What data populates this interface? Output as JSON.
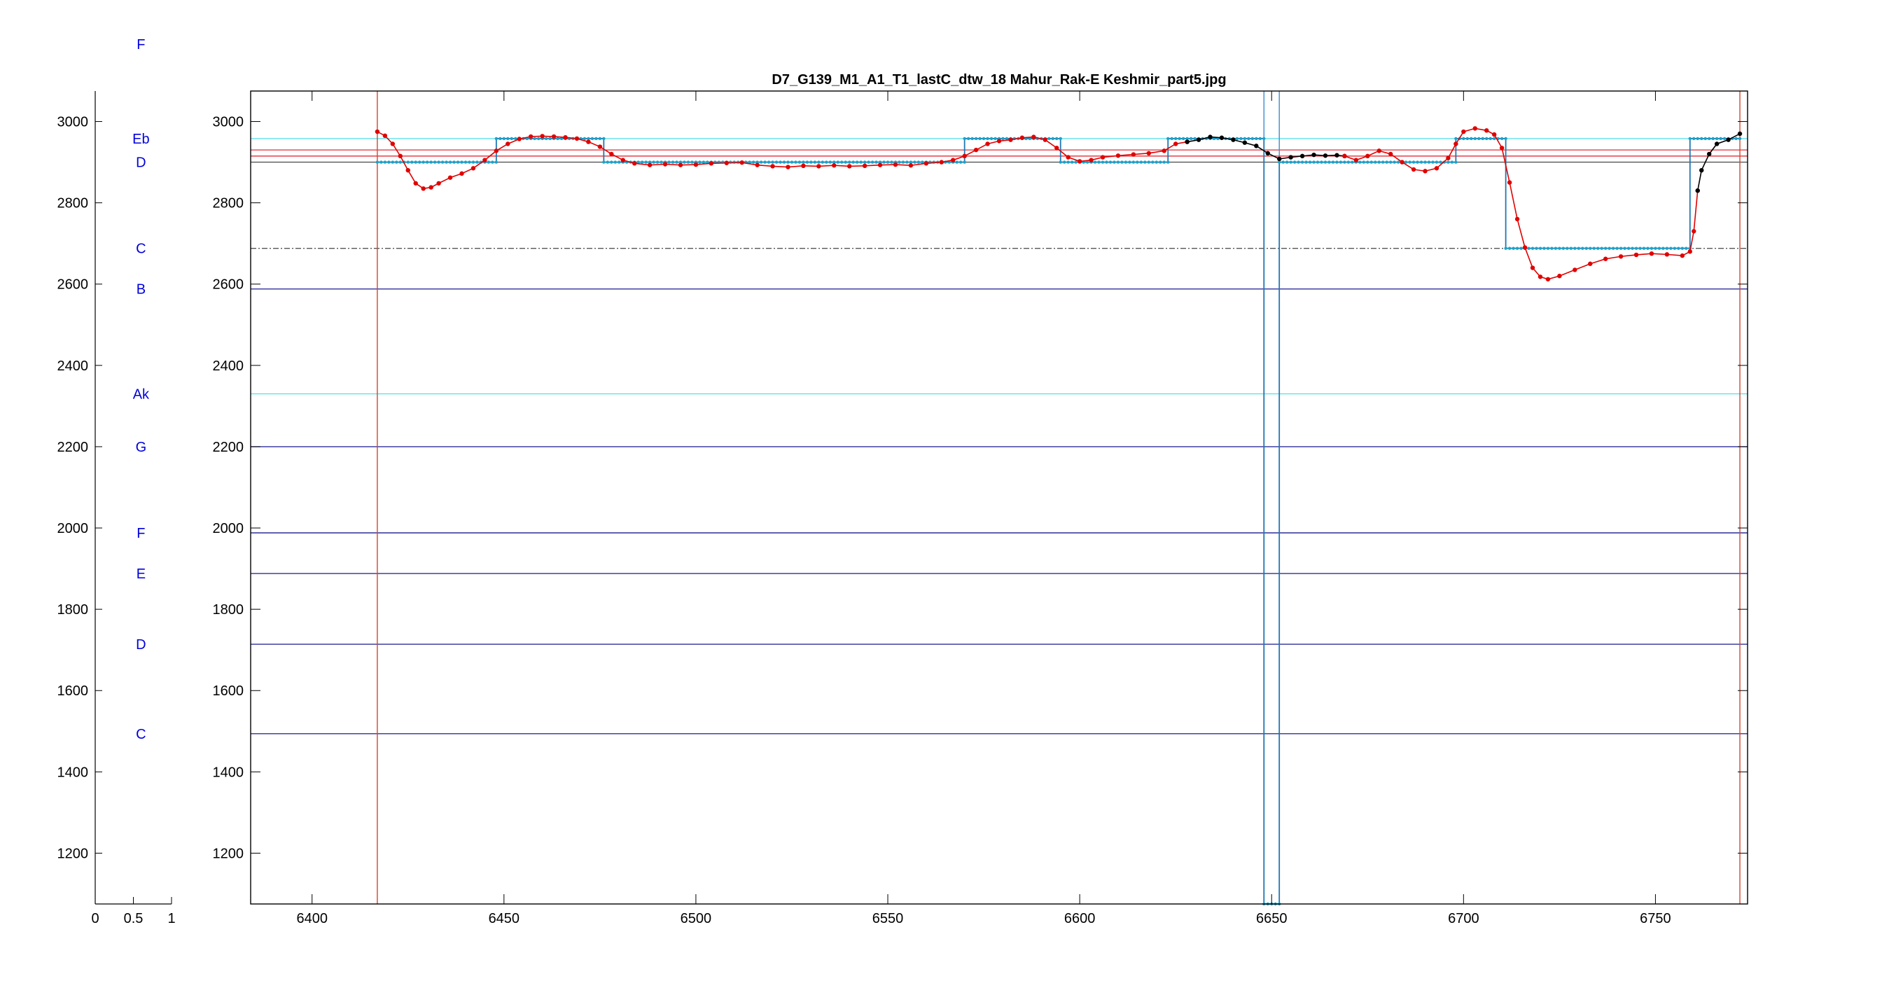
{
  "window": {
    "title": "D7_G139_M1_A1_T1_lastC_dtw_18 Mahur_Rak-E Keshmir_part5.jpg"
  },
  "colors": {
    "pitch": "#e00000",
    "pitch_unassigned": "#000000",
    "steps": "#1f77b4",
    "step_markers": "#1aa3c8",
    "boundary_red": "#d2462d",
    "boundary_blue": "#3b8ed0",
    "ref_navy": "#2f2f9a",
    "ref_cyan": "#5fe0ea",
    "ref_red": "#e3404a",
    "ref_dark": "#555555",
    "note_label": "#0000dd"
  },
  "chart_data": [
    {
      "type": "table",
      "x": {
        "ticks": [
          0,
          0.5,
          1
        ],
        "tick_labels": [
          "0",
          "0.5",
          "1"
        ],
        "xlim": [
          0,
          1
        ]
      },
      "ylim": [
        1075,
        3075
      ],
      "y_ticks": [
        1200,
        1400,
        1600,
        1800,
        2000,
        2200,
        2400,
        2600,
        2800,
        3000
      ],
      "note_labels": [
        {
          "name": "F",
          "cents": 3190
        },
        {
          "name": "Eb",
          "cents": 2958
        },
        {
          "name": "D",
          "cents": 2900
        },
        {
          "name": "C",
          "cents": 2688
        },
        {
          "name": "B",
          "cents": 2588
        },
        {
          "name": "Ak",
          "cents": 2330
        },
        {
          "name": "G",
          "cents": 2200
        },
        {
          "name": "F",
          "cents": 1988
        },
        {
          "name": "E",
          "cents": 1888
        },
        {
          "name": "D",
          "cents": 1714
        },
        {
          "name": "C",
          "cents": 1494
        }
      ]
    },
    {
      "type": "line",
      "title": "D7_G139_M1_A1_T1_lastC_dtw_18 Mahur_Rak-E Keshmir_part5.jpg",
      "xlabel": "",
      "ylabel": "",
      "xlim": [
        6384,
        6774
      ],
      "ylim": [
        1075,
        3075
      ],
      "x_ticks": [
        6400,
        6450,
        6500,
        6550,
        6600,
        6650,
        6700,
        6750
      ],
      "y_ticks": [
        1200,
        1400,
        1600,
        1800,
        2000,
        2200,
        2400,
        2600,
        2800,
        3000
      ],
      "grid": false,
      "reference_lines": [
        {
          "y": 2958,
          "color": "#5fe0ea"
        },
        {
          "y": 2930,
          "color": "#e3404a"
        },
        {
          "y": 2915,
          "color": "#e3404a"
        },
        {
          "y": 2900,
          "color": "#555555"
        },
        {
          "y": 2688,
          "color": "#555555",
          "dashed": true
        },
        {
          "y": 2588,
          "color": "#2f2f9a"
        },
        {
          "y": 2330,
          "color": "#5fe0ea"
        },
        {
          "y": 2200,
          "color": "#2f2f9a"
        },
        {
          "y": 1988,
          "color": "#2f2f9a"
        },
        {
          "y": 1888,
          "color": "#2f2f9a"
        },
        {
          "y": 1714,
          "color": "#2f2f9a"
        },
        {
          "y": 1494,
          "color": "#2f2f9a"
        }
      ],
      "boundaries": [
        {
          "x": 6417,
          "color": "#d2462d"
        },
        {
          "x": 6648,
          "color": "#3b8ed0"
        },
        {
          "x": 6652,
          "color": "#3b8ed0"
        },
        {
          "x": 6772,
          "color": "#d2462d"
        }
      ],
      "steps": [
        {
          "x0": 6417,
          "x1": 6448,
          "y": 2900
        },
        {
          "x0": 6448,
          "x1": 6476,
          "y": 2958
        },
        {
          "x0": 6476,
          "x1": 6570,
          "y": 2900
        },
        {
          "x0": 6570,
          "x1": 6595,
          "y": 2958
        },
        {
          "x0": 6595,
          "x1": 6623,
          "y": 2900
        },
        {
          "x0": 6623,
          "x1": 6648,
          "y": 2958
        },
        {
          "x0": 6648,
          "x1": 6652,
          "y": 1075
        },
        {
          "x0": 6652,
          "x1": 6698,
          "y": 2900
        },
        {
          "x0": 6698,
          "x1": 6711,
          "y": 2958
        },
        {
          "x0": 6711,
          "x1": 6759,
          "y": 2688
        },
        {
          "x0": 6759,
          "x1": 6772,
          "y": 2958
        }
      ],
      "series": [
        {
          "points": [
            [
              6417,
              2975
            ],
            [
              6419,
              2965
            ],
            [
              6421,
              2945
            ],
            [
              6423,
              2915
            ],
            [
              6425,
              2880
            ],
            [
              6427,
              2848
            ],
            [
              6429,
              2835
            ],
            [
              6431,
              2838
            ],
            [
              6433,
              2848
            ],
            [
              6436,
              2862
            ],
            [
              6439,
              2872
            ],
            [
              6442,
              2885
            ],
            [
              6445,
              2905
            ],
            [
              6448,
              2928
            ],
            [
              6451,
              2945
            ],
            [
              6454,
              2957
            ],
            [
              6457,
              2963
            ],
            [
              6460,
              2964
            ],
            [
              6463,
              2963
            ],
            [
              6466,
              2961
            ],
            [
              6469,
              2958
            ],
            [
              6472,
              2950
            ],
            [
              6475,
              2938
            ],
            [
              6478,
              2920
            ],
            [
              6481,
              2905
            ],
            [
              6484,
              2897
            ],
            [
              6488,
              2893
            ],
            [
              6492,
              2895
            ],
            [
              6496,
              2893
            ],
            [
              6500,
              2894
            ],
            [
              6504,
              2897
            ],
            [
              6508,
              2898
            ],
            [
              6512,
              2899
            ],
            [
              6516,
              2893
            ],
            [
              6520,
              2890
            ],
            [
              6524,
              2888
            ],
            [
              6528,
              2891
            ],
            [
              6532,
              2890
            ],
            [
              6536,
              2892
            ],
            [
              6540,
              2890
            ],
            [
              6544,
              2891
            ],
            [
              6548,
              2893
            ],
            [
              6552,
              2894
            ],
            [
              6556,
              2892
            ],
            [
              6560,
              2897
            ],
            [
              6564,
              2900
            ],
            [
              6567,
              2905
            ],
            [
              6570,
              2915
            ],
            [
              6573,
              2930
            ],
            [
              6576,
              2945
            ],
            [
              6579,
              2952
            ],
            [
              6582,
              2955
            ],
            [
              6585,
              2960
            ],
            [
              6588,
              2962
            ],
            [
              6591,
              2955
            ],
            [
              6594,
              2935
            ],
            [
              6597,
              2912
            ],
            [
              6600,
              2902
            ],
            [
              6603,
              2905
            ],
            [
              6606,
              2912
            ],
            [
              6610,
              2916
            ],
            [
              6614,
              2919
            ],
            [
              6618,
              2922
            ],
            [
              6622,
              2928
            ],
            [
              6625,
              2945
            ],
            [
              6628,
              2950
            ]
          ]
        },
        {
          "points": [
            [
              6628,
              2950
            ],
            [
              6631,
              2955
            ],
            [
              6634,
              2962
            ],
            [
              6637,
              2960
            ],
            [
              6640,
              2955
            ],
            [
              6643,
              2948
            ],
            [
              6646,
              2940
            ],
            [
              6649,
              2922
            ],
            [
              6652,
              2908
            ],
            [
              6655,
              2912
            ],
            [
              6658,
              2915
            ],
            [
              6661,
              2918
            ],
            [
              6664,
              2916
            ],
            [
              6667,
              2917
            ],
            [
              6669,
              2915
            ]
          ]
        },
        {
          "points": [
            [
              6669,
              2915
            ],
            [
              6672,
              2905
            ],
            [
              6675,
              2915
            ],
            [
              6678,
              2928
            ],
            [
              6681,
              2920
            ],
            [
              6684,
              2900
            ],
            [
              6687,
              2882
            ],
            [
              6690,
              2878
            ],
            [
              6693,
              2885
            ],
            [
              6696,
              2910
            ],
            [
              6698,
              2945
            ],
            [
              6700,
              2975
            ],
            [
              6703,
              2983
            ],
            [
              6706,
              2978
            ],
            [
              6708,
              2968
            ],
            [
              6710,
              2935
            ],
            [
              6712,
              2850
            ],
            [
              6714,
              2760
            ],
            [
              6716,
              2690
            ],
            [
              6718,
              2640
            ],
            [
              6720,
              2618
            ],
            [
              6722,
              2612
            ],
            [
              6725,
              2620
            ],
            [
              6729,
              2635
            ],
            [
              6733,
              2650
            ],
            [
              6737,
              2662
            ],
            [
              6741,
              2668
            ],
            [
              6745,
              2672
            ],
            [
              6749,
              2675
            ],
            [
              6753,
              2673
            ],
            [
              6757,
              2670
            ],
            [
              6759,
              2680
            ],
            [
              6760,
              2730
            ],
            [
              6761,
              2830
            ]
          ]
        },
        {
          "points": [
            [
              6761,
              2830
            ],
            [
              6762,
              2880
            ],
            [
              6764,
              2920
            ],
            [
              6766,
              2945
            ],
            [
              6769,
              2955
            ],
            [
              6772,
              2970
            ]
          ]
        }
      ]
    }
  ]
}
